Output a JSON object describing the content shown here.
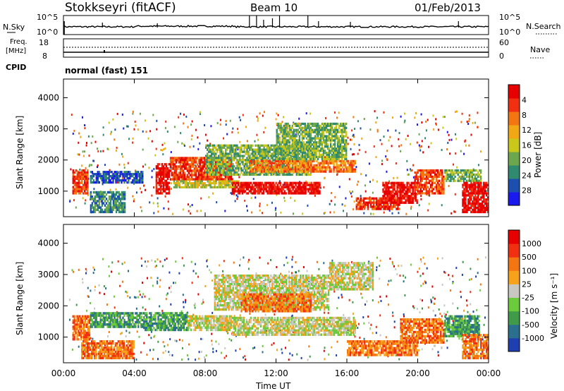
{
  "header": {
    "station": "Stokkseyri (fitACF)",
    "beam": "Beam 10",
    "date": "01/Feb/2013"
  },
  "strip_labels": {
    "nsky": "N.Sky",
    "nsky_ticks": [
      "10^5",
      "10^0"
    ],
    "nsearch": "N.Search",
    "nsearch_ticks": [
      "10^5",
      "10^0"
    ],
    "freq_line1": "Freq.",
    "freq_line2": "[MHz]",
    "freq_ticks": [
      "18",
      "8"
    ],
    "nave": "Nave",
    "nave_ticks": [
      "60",
      "0"
    ],
    "cpid": "CPID",
    "cpid_value": "normal (fast) 151"
  },
  "chart_data": [
    {
      "type": "heatmap",
      "name": "power",
      "ylabel": "Slant Range [km]",
      "y_ticks": [
        "1000",
        "2000",
        "3000",
        "4000"
      ],
      "colorbar_label": "Power [dB]",
      "colorbar_ticks": [
        "4",
        "8",
        "12",
        "16",
        "20",
        "24",
        "28"
      ],
      "colors": [
        "#1a1aee",
        "#1d4fae",
        "#2f8a70",
        "#6ca74e",
        "#c9c81a",
        "#f2a814",
        "#f47612",
        "#f03010",
        "#e60000"
      ],
      "bands": [
        {
          "x0": 0.5,
          "x1": 1.4,
          "r0": 900,
          "r1": 1700,
          "level": 7
        },
        {
          "x0": 1.5,
          "x1": 4.5,
          "r0": 1250,
          "r1": 1650,
          "level": 1
        },
        {
          "x0": 1.5,
          "x1": 3.5,
          "r0": 300,
          "r1": 1000,
          "level": 2
        },
        {
          "x0": 5.2,
          "x1": 6.0,
          "r0": 900,
          "r1": 1900,
          "level": 8
        },
        {
          "x0": 6.0,
          "x1": 9.5,
          "r0": 1350,
          "r1": 2100,
          "level": 7
        },
        {
          "x0": 6.2,
          "x1": 10.0,
          "r0": 1100,
          "r1": 1350,
          "level": 4
        },
        {
          "x0": 8.0,
          "x1": 14.0,
          "r0": 1500,
          "r1": 2500,
          "level": 3
        },
        {
          "x0": 9.5,
          "x1": 14.5,
          "r0": 900,
          "r1": 1300,
          "level": 8
        },
        {
          "x0": 10.5,
          "x1": 16.5,
          "r0": 1600,
          "r1": 2000,
          "level": 6
        },
        {
          "x0": 12.0,
          "x1": 16.0,
          "r0": 2000,
          "r1": 3200,
          "level": 3
        },
        {
          "x0": 16.5,
          "x1": 19.0,
          "r0": 400,
          "r1": 800,
          "level": 7
        },
        {
          "x0": 18.0,
          "x1": 20.0,
          "r0": 600,
          "r1": 1300,
          "level": 8
        },
        {
          "x0": 19.8,
          "x1": 21.5,
          "r0": 900,
          "r1": 1700,
          "level": 7
        },
        {
          "x0": 21.5,
          "x1": 23.6,
          "r0": 1300,
          "r1": 1700,
          "level": 3
        },
        {
          "x0": 22.5,
          "x1": 24.0,
          "r0": 300,
          "r1": 1300,
          "level": 8
        }
      ]
    },
    {
      "type": "heatmap",
      "name": "velocity",
      "ylabel": "Slant Range [km]",
      "y_ticks": [
        "1000",
        "2000",
        "3000",
        "4000"
      ],
      "xlabel": "Time UT",
      "x_ticks": [
        "00:00",
        "04:00",
        "08:00",
        "12:00",
        "16:00",
        "20:00",
        "00:00"
      ],
      "colorbar_label": "Velocity [m s⁻¹]",
      "colorbar_ticks": [
        "1000",
        "500",
        "100",
        "25",
        "-25",
        "-100",
        "-500",
        "-1000"
      ],
      "colors": [
        "#1f3fb0",
        "#2b6f8f",
        "#3f9a4a",
        "#6ccb3a",
        "#c8c8c0",
        "#f7a21b",
        "#f47612",
        "#f03010",
        "#e60000"
      ],
      "bands": [
        {
          "x0": 0.5,
          "x1": 1.5,
          "r0": 900,
          "r1": 1700,
          "level": 6
        },
        {
          "x0": 1.5,
          "x1": 4.5,
          "r0": 1300,
          "r1": 1800,
          "level": 2
        },
        {
          "x0": 1.0,
          "x1": 4.0,
          "r0": 300,
          "r1": 900,
          "level": 6
        },
        {
          "x0": 4.5,
          "x1": 7.0,
          "r0": 1200,
          "r1": 1800,
          "level": 2
        },
        {
          "x0": 7.0,
          "x1": 9.5,
          "r0": 1200,
          "r1": 1700,
          "level": 4
        },
        {
          "x0": 9.5,
          "x1": 16.5,
          "r0": 1050,
          "r1": 1650,
          "level": 4
        },
        {
          "x0": 8.5,
          "x1": 15.0,
          "r0": 1850,
          "r1": 3000,
          "level": 4
        },
        {
          "x0": 10.0,
          "x1": 14.0,
          "r0": 1800,
          "r1": 2400,
          "level": 6
        },
        {
          "x0": 15.0,
          "x1": 17.5,
          "r0": 2500,
          "r1": 3400,
          "level": 4
        },
        {
          "x0": 16.0,
          "x1": 20.0,
          "r0": 400,
          "r1": 900,
          "level": 6
        },
        {
          "x0": 19.0,
          "x1": 21.5,
          "r0": 800,
          "r1": 1600,
          "level": 6
        },
        {
          "x0": 21.5,
          "x1": 23.5,
          "r0": 1000,
          "r1": 1700,
          "level": 2
        },
        {
          "x0": 22.5,
          "x1": 24.0,
          "r0": 300,
          "r1": 1100,
          "level": 6
        }
      ]
    }
  ]
}
